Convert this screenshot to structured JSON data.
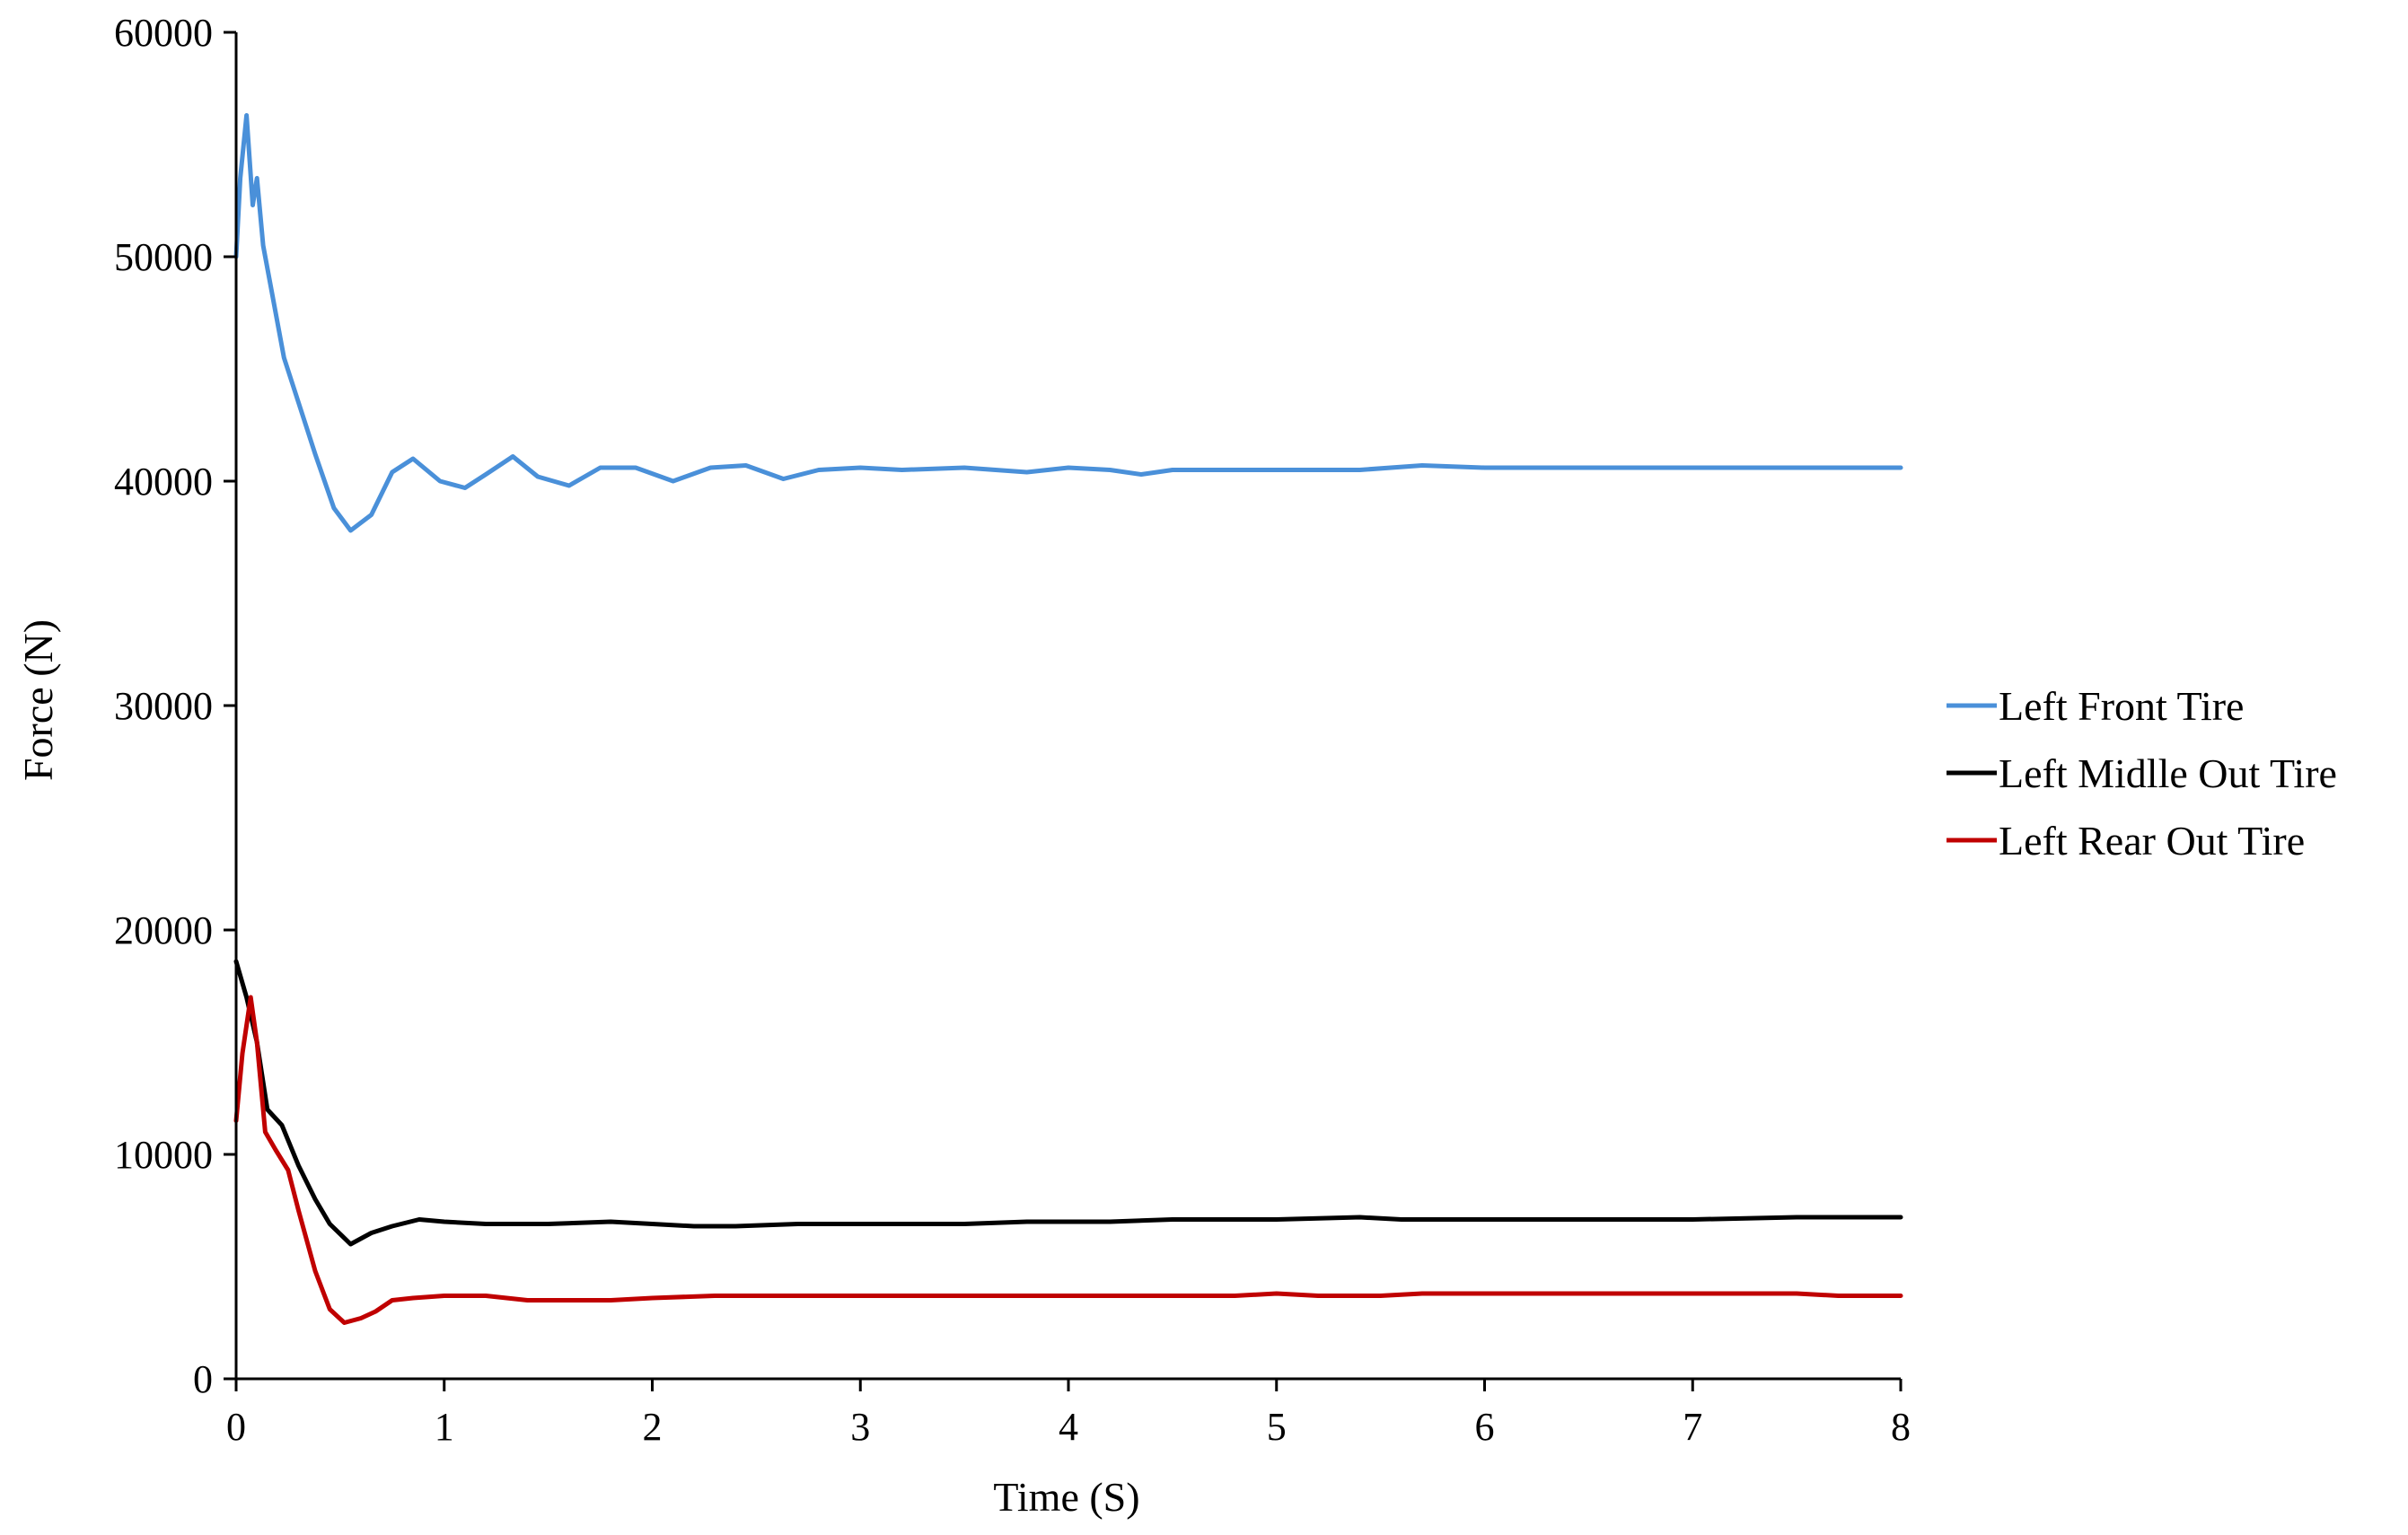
{
  "chart_data": {
    "type": "line",
    "title": "",
    "xlabel": "Time (S)",
    "ylabel": "Force (N)",
    "xlim": [
      0,
      8
    ],
    "ylim": [
      0,
      60000
    ],
    "xticks": [
      0,
      1,
      2,
      3,
      4,
      5,
      6,
      7,
      8
    ],
    "yticks": [
      0,
      10000,
      20000,
      30000,
      40000,
      50000,
      60000
    ],
    "grid": false,
    "legend_position": "right",
    "series": [
      {
        "name": "Left Front Tire",
        "color": "#4a90d9",
        "x": [
          0,
          0.02,
          0.05,
          0.08,
          0.1,
          0.13,
          0.17,
          0.23,
          0.3,
          0.38,
          0.47,
          0.55,
          0.65,
          0.75,
          0.85,
          0.98,
          1.1,
          1.2,
          1.33,
          1.45,
          1.6,
          1.75,
          1.92,
          2.1,
          2.28,
          2.45,
          2.63,
          2.8,
          3.0,
          3.2,
          3.5,
          3.8,
          4.0,
          4.2,
          4.35,
          4.5,
          4.7,
          5.0,
          5.4,
          5.7,
          6.0,
          6.5,
          7.0,
          7.5,
          8.0
        ],
        "y": [
          50000,
          53500,
          56300,
          52300,
          53500,
          50500,
          48500,
          45500,
          43500,
          41200,
          38800,
          37800,
          38500,
          40400,
          41000,
          40000,
          39700,
          40300,
          41100,
          40200,
          39800,
          40600,
          40600,
          40000,
          40600,
          40700,
          40100,
          40500,
          40600,
          40500,
          40600,
          40400,
          40600,
          40500,
          40300,
          40500,
          40500,
          40500,
          40500,
          40700,
          40600,
          40600,
          40600,
          40600,
          40600
        ]
      },
      {
        "name": "Left Midlle Out Tire",
        "color": "#000000",
        "x": [
          0,
          0.05,
          0.1,
          0.15,
          0.22,
          0.3,
          0.38,
          0.45,
          0.55,
          0.65,
          0.75,
          0.88,
          1.0,
          1.2,
          1.5,
          1.8,
          2.0,
          2.2,
          2.4,
          2.7,
          3.0,
          3.5,
          3.8,
          4.2,
          4.5,
          5.0,
          5.4,
          5.6,
          6.0,
          6.5,
          7.0,
          7.5,
          8.0
        ],
        "y": [
          18600,
          17000,
          15000,
          12000,
          11300,
          9500,
          8000,
          6900,
          6000,
          6500,
          6800,
          7100,
          7000,
          6900,
          6900,
          7000,
          6900,
          6800,
          6800,
          6900,
          6900,
          6900,
          7000,
          7000,
          7100,
          7100,
          7200,
          7100,
          7100,
          7100,
          7100,
          7200,
          7200
        ]
      },
      {
        "name": "Left Rear Out Tire",
        "color": "#c00000",
        "x": [
          0,
          0.03,
          0.07,
          0.1,
          0.14,
          0.19,
          0.25,
          0.3,
          0.38,
          0.45,
          0.52,
          0.6,
          0.67,
          0.75,
          0.85,
          1.0,
          1.2,
          1.4,
          1.6,
          1.8,
          2.0,
          2.3,
          2.6,
          3.0,
          3.5,
          4.0,
          4.5,
          4.8,
          5.0,
          5.2,
          5.5,
          5.7,
          6.0,
          6.5,
          7.0,
          7.5,
          7.7,
          8.0
        ],
        "y": [
          11500,
          14500,
          17000,
          15000,
          11000,
          10200,
          9300,
          7500,
          4800,
          3100,
          2500,
          2700,
          3000,
          3500,
          3600,
          3700,
          3700,
          3500,
          3500,
          3500,
          3600,
          3700,
          3700,
          3700,
          3700,
          3700,
          3700,
          3700,
          3800,
          3700,
          3700,
          3800,
          3800,
          3800,
          3800,
          3800,
          3700,
          3700
        ]
      }
    ]
  }
}
